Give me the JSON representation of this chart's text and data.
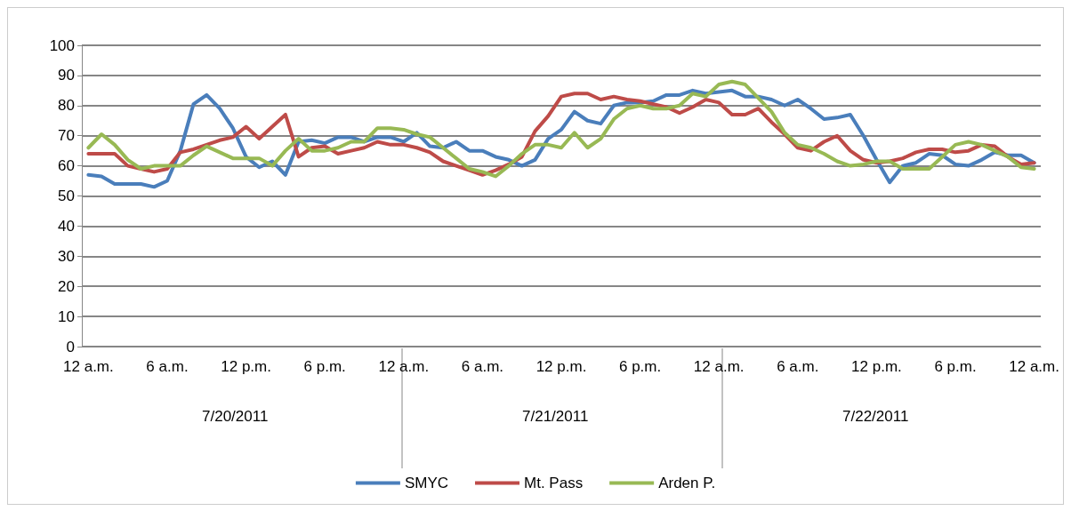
{
  "chart_data": {
    "type": "line",
    "categories": [
      "12 a.m.",
      null,
      null,
      null,
      null,
      null,
      "6 a.m.",
      null,
      null,
      null,
      null,
      null,
      "12 p.m.",
      null,
      null,
      null,
      null,
      null,
      "6 p.m.",
      null,
      null,
      null,
      null,
      null,
      "12 a.m.",
      null,
      null,
      null,
      null,
      null,
      "6 a.m.",
      null,
      null,
      null,
      null,
      null,
      "12 p.m.",
      null,
      null,
      null,
      null,
      null,
      "6 p.m.",
      null,
      null,
      null,
      null,
      null,
      "12 a.m.",
      null,
      null,
      null,
      null,
      null,
      "6 a.m.",
      null,
      null,
      null,
      null,
      null,
      "12 p.m.",
      null,
      null,
      null,
      null,
      null,
      "6 p.m.",
      null,
      null,
      null,
      null,
      null,
      "12 a.m."
    ],
    "series": [
      {
        "name": "SMYC",
        "color": "#4a7ebb",
        "values": [
          57,
          56.5,
          54,
          54,
          54,
          53,
          55,
          65,
          80.5,
          83.5,
          79,
          72.5,
          63,
          59.5,
          61.5,
          57,
          68,
          68.5,
          67.5,
          69.5,
          69.5,
          68,
          69.5,
          69.5,
          68,
          71,
          66.5,
          66,
          68,
          65,
          65,
          63,
          62,
          60,
          62,
          69,
          72,
          78,
          75,
          74,
          80,
          81,
          81,
          81.5,
          83.5,
          83.5,
          85,
          84,
          84.5,
          85,
          83,
          83,
          82,
          80,
          82,
          79,
          75.5,
          76,
          77,
          70,
          62,
          54.5,
          60,
          61,
          64,
          63.5,
          60.5,
          60,
          62,
          64.5,
          63.5,
          63.5,
          61
        ]
      },
      {
        "name": "Mt. Pass",
        "color": "#be4b48",
        "values": [
          64,
          64,
          64,
          60,
          59,
          58,
          59,
          64.5,
          65.5,
          67,
          68.5,
          69.5,
          73,
          69,
          73,
          77,
          63,
          66,
          66.5,
          64,
          65,
          66,
          68,
          67,
          67,
          66,
          64.5,
          61.5,
          60,
          58.5,
          57,
          58.5,
          60.5,
          63,
          71.5,
          76.5,
          83,
          84,
          84,
          82,
          83,
          82,
          81.5,
          80.5,
          79.5,
          77.5,
          79.5,
          82,
          81,
          77,
          77,
          79,
          74.5,
          70.5,
          66,
          65,
          68,
          70,
          65,
          62,
          61,
          61.5,
          62.5,
          64.5,
          65.5,
          65.5,
          64.5,
          65,
          67,
          66.5,
          63,
          60.5,
          61
        ]
      },
      {
        "name": "Arden P.",
        "color": "#98b954",
        "values": [
          66,
          70.5,
          67,
          62,
          59,
          60,
          60,
          60,
          63.5,
          66.5,
          64.5,
          62.5,
          62.5,
          62.5,
          60,
          65,
          69,
          65,
          65,
          66,
          68,
          68,
          72.5,
          72.5,
          72,
          70.5,
          69.5,
          66,
          62.5,
          59,
          58,
          56.5,
          60,
          64,
          67,
          67,
          66,
          71,
          66,
          69,
          75.5,
          79,
          80,
          79,
          79,
          80,
          84,
          83,
          87,
          88,
          87,
          82.5,
          78,
          71,
          67,
          66,
          64,
          61.5,
          60,
          60.5,
          61.5,
          61.5,
          59,
          59,
          59,
          63,
          67,
          68,
          67,
          65,
          63,
          59.5,
          59
        ]
      }
    ],
    "annotations": [
      "7/20/2011",
      "7/21/2011",
      "7/22/2011"
    ],
    "ylim": [
      0,
      100
    ],
    "yticks": [
      0,
      10,
      20,
      30,
      40,
      50,
      60,
      70,
      80,
      90,
      100
    ],
    "grid": "y",
    "legend": "bottom",
    "marker": "none",
    "line_style": "solid"
  }
}
